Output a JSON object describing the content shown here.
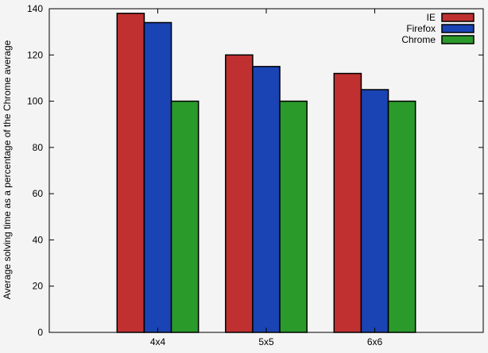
{
  "chart_data": {
    "type": "bar",
    "title": "",
    "xlabel": "",
    "ylabel": "Average solving time as a percentage of the Chrome average",
    "categories": [
      "4x4",
      "5x5",
      "6x6"
    ],
    "series": [
      {
        "name": "IE",
        "values": [
          138,
          120,
          112
        ],
        "color": "#c03030"
      },
      {
        "name": "Firefox",
        "values": [
          134,
          115,
          105
        ],
        "color": "#1a44b4"
      },
      {
        "name": "Chrome",
        "values": [
          100,
          100,
          100
        ],
        "color": "#2a9a2a"
      }
    ],
    "ylim": [
      0,
      140
    ],
    "yticks": [
      0,
      20,
      40,
      60,
      80,
      100,
      120,
      140
    ],
    "legend_position": "top-right",
    "grid": false,
    "background": "#f4f4f4"
  }
}
